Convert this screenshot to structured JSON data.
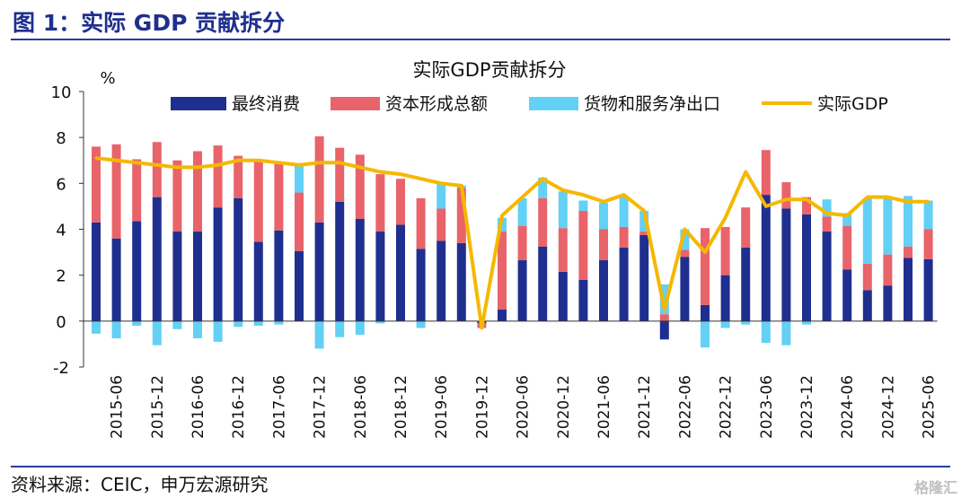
{
  "figure_label": "图 1：实际 GDP 贡献拆分",
  "source_text": "资料来源：CEIC，申万宏源研究",
  "watermark": "格隆汇",
  "colors": {
    "consumption": "#1f2f8f",
    "investment": "#e8646a",
    "net_exports": "#63d0f5",
    "gdp_line": "#f5b800"
  },
  "chart_data": {
    "type": "bar",
    "stacked": true,
    "title": "实际GDP贡献拆分",
    "ylabel": "%",
    "ylim": [
      -2,
      10
    ],
    "yticks": [
      -2,
      0,
      2,
      4,
      6,
      8,
      10
    ],
    "categories": [
      "2015-03",
      "2015-06",
      "2015-09",
      "2015-12",
      "2016-03",
      "2016-06",
      "2016-09",
      "2016-12",
      "2017-03",
      "2017-06",
      "2017-09",
      "2017-12",
      "2018-03",
      "2018-06",
      "2018-09",
      "2018-12",
      "2019-03",
      "2019-06",
      "2019-09",
      "2019-12",
      "2020-03",
      "2020-06",
      "2020-09",
      "2020-12",
      "2021-03",
      "2021-06",
      "2021-09",
      "2021-12",
      "2022-03",
      "2022-06",
      "2022-09",
      "2022-12",
      "2023-03",
      "2023-06",
      "2023-09",
      "2023-12",
      "2024-03",
      "2024-06",
      "2024-09",
      "2024-12",
      "2025-03",
      "2025-06"
    ],
    "xtick_labels": [
      "2015-06",
      "2015-12",
      "2016-06",
      "2016-12",
      "2017-06",
      "2017-12",
      "2018-06",
      "2018-12",
      "2019-06",
      "2019-12",
      "2020-06",
      "2020-12",
      "2021-06",
      "2021-12",
      "2022-06",
      "2022-12",
      "2023-06",
      "2023-12",
      "2024-06",
      "2024-12",
      "2025-06"
    ],
    "series": [
      {
        "name": "最终消费",
        "values": [
          4.3,
          3.6,
          4.35,
          5.4,
          3.9,
          3.9,
          4.95,
          5.35,
          3.45,
          3.95,
          3.05,
          4.3,
          5.2,
          4.45,
          3.9,
          4.2,
          3.15,
          3.5,
          3.4,
          -0.1,
          0.5,
          2.65,
          3.25,
          2.15,
          1.8,
          2.65,
          3.2,
          3.75,
          -0.8,
          2.8,
          0.7,
          2.0,
          3.2,
          5.5,
          4.9,
          4.65,
          3.9,
          2.25,
          1.35,
          1.55,
          2.75,
          2.7
        ]
      },
      {
        "name": "资本形成总额",
        "values": [
          3.3,
          4.1,
          2.7,
          2.4,
          3.1,
          3.5,
          2.7,
          1.85,
          3.55,
          2.9,
          2.55,
          3.75,
          2.35,
          2.8,
          2.5,
          2.0,
          2.2,
          1.4,
          2.4,
          -0.2,
          3.4,
          1.5,
          2.1,
          1.9,
          3.0,
          1.35,
          0.9,
          0.15,
          0.3,
          0.3,
          3.35,
          2.1,
          1.75,
          1.95,
          1.15,
          0.75,
          0.65,
          1.9,
          1.15,
          1.35,
          0.5,
          1.3
        ]
      },
      {
        "name": "货物和服务净出口",
        "values": [
          -0.55,
          -0.75,
          -0.2,
          -1.05,
          -0.35,
          -0.75,
          -0.9,
          -0.25,
          -0.2,
          -0.15,
          1.2,
          -1.2,
          -0.7,
          -0.6,
          -0.1,
          0.0,
          -0.3,
          1.15,
          0.1,
          0.0,
          0.6,
          1.2,
          0.9,
          1.6,
          0.45,
          1.15,
          1.35,
          0.9,
          1.3,
          0.9,
          -1.15,
          -0.3,
          -0.15,
          -0.95,
          -1.05,
          -0.15,
          0.75,
          0.55,
          2.85,
          2.5,
          2.2,
          1.25
        ]
      },
      {
        "name": "实际GDP",
        "type": "line",
        "values": [
          7.1,
          7.0,
          6.9,
          6.8,
          6.7,
          6.7,
          6.8,
          7.0,
          7.0,
          6.9,
          6.8,
          6.9,
          6.9,
          6.7,
          6.5,
          6.4,
          6.2,
          6.0,
          5.9,
          -0.3,
          4.6,
          5.4,
          6.2,
          5.7,
          5.5,
          5.2,
          5.5,
          4.8,
          0.5,
          4.0,
          3.0,
          4.5,
          6.5,
          5.0,
          5.3,
          5.3,
          4.7,
          4.6,
          5.4,
          5.4,
          5.2,
          5.2
        ]
      }
    ]
  }
}
